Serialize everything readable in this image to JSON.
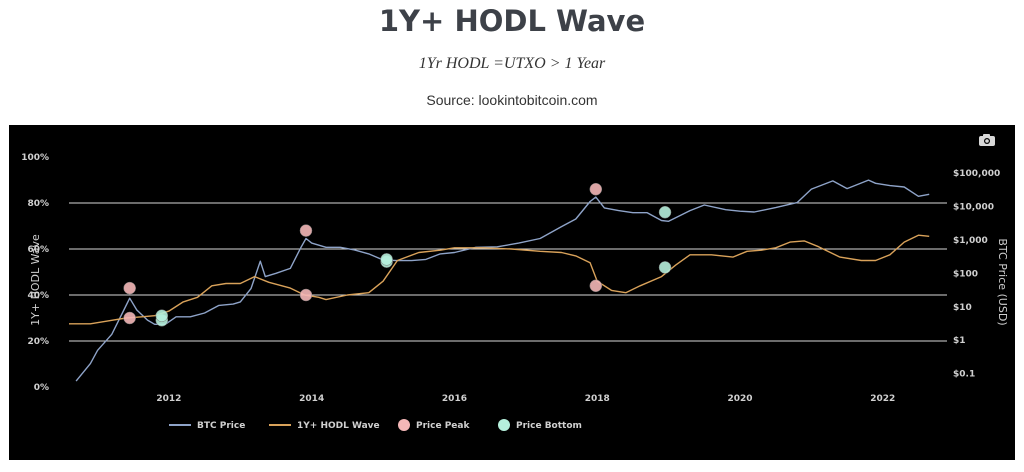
{
  "header": {
    "title": "1Y+ HODL Wave",
    "subtitle": "1Yr HODL =UTXO > 1 Year",
    "source": "Source: lookintobitcoin.com"
  },
  "chart_data": {
    "type": "line",
    "title": "1Y+ HODL Wave",
    "x_range": [
      2010.6,
      2022.9
    ],
    "x_ticks": [
      2012,
      2014,
      2016,
      2018,
      2020,
      2022
    ],
    "y_left": {
      "label": "1Y+ HODL Wave",
      "range": [
        0,
        100
      ],
      "ticks": [
        0,
        20,
        40,
        60,
        80,
        100
      ],
      "tick_labels": [
        "0%",
        "20%",
        "40%",
        "60%",
        "80%",
        "100%"
      ]
    },
    "y_right": {
      "label": "BTC Price (USD)",
      "scale": "log",
      "range": [
        0.04,
        300000
      ],
      "ticks": [
        0.1,
        1,
        10,
        100,
        1000,
        10000,
        100000
      ],
      "tick_labels": [
        "$0.1",
        "$1",
        "$10",
        "$100",
        "$1,000",
        "$10,000",
        "$100,000"
      ]
    },
    "grid": true,
    "legend_position": "bottom",
    "legend": [
      "BTC Price",
      "1Y+ HODL Wave",
      "Price Peak",
      "Price Bottom"
    ],
    "series": [
      {
        "name": "BTC Price",
        "axis": "right",
        "color": "#8ea3c8",
        "x": [
          2010.7,
          2010.9,
          2011.0,
          2011.2,
          2011.45,
          2011.55,
          2011.7,
          2011.8,
          2011.95,
          2012.1,
          2012.3,
          2012.5,
          2012.7,
          2012.9,
          2013.0,
          2013.15,
          2013.28,
          2013.35,
          2013.5,
          2013.7,
          2013.85,
          2013.92,
          2014.0,
          2014.2,
          2014.4,
          2014.6,
          2014.8,
          2015.0,
          2015.2,
          2015.4,
          2015.6,
          2015.8,
          2016.0,
          2016.3,
          2016.6,
          2016.9,
          2017.2,
          2017.5,
          2017.7,
          2017.9,
          2017.98,
          2018.1,
          2018.3,
          2018.5,
          2018.7,
          2018.9,
          2019.0,
          2019.3,
          2019.5,
          2019.8,
          2020.0,
          2020.2,
          2020.5,
          2020.8,
          2021.0,
          2021.3,
          2021.5,
          2021.8,
          2021.9,
          2022.1,
          2022.3,
          2022.5,
          2022.65
        ],
        "y": [
          0.06,
          0.2,
          0.5,
          1.5,
          18,
          8,
          4,
          3,
          3,
          5,
          5,
          6.5,
          11,
          12,
          14,
          35,
          230,
          80,
          100,
          140,
          600,
          1100,
          800,
          600,
          600,
          500,
          380,
          250,
          240,
          240,
          260,
          380,
          420,
          600,
          620,
          800,
          1100,
          2500,
          4200,
          14000,
          19000,
          9000,
          7500,
          6500,
          6500,
          3800,
          3600,
          7500,
          11000,
          8000,
          7200,
          6800,
          9200,
          13000,
          33000,
          58000,
          34000,
          61000,
          49000,
          42000,
          38000,
          20000,
          23000
        ]
      },
      {
        "name": "1Y+ HODL Wave",
        "axis": "left",
        "color": "#d9a25a",
        "x": [
          2010.6,
          2010.9,
          2011.2,
          2011.4,
          2011.6,
          2011.8,
          2012.0,
          2012.2,
          2012.4,
          2012.6,
          2012.8,
          2013.0,
          2013.2,
          2013.4,
          2013.7,
          2013.9,
          2014.1,
          2014.2,
          2014.5,
          2014.8,
          2015.0,
          2015.2,
          2015.5,
          2015.8,
          2016.0,
          2016.4,
          2016.8,
          2017.2,
          2017.5,
          2017.7,
          2017.9,
          2018.0,
          2018.2,
          2018.4,
          2018.6,
          2018.9,
          2019.1,
          2019.3,
          2019.6,
          2019.9,
          2020.1,
          2020.3,
          2020.5,
          2020.7,
          2020.9,
          2021.1,
          2021.4,
          2021.7,
          2021.9,
          2022.1,
          2022.3,
          2022.5,
          2022.65
        ],
        "y": [
          27.5,
          27.5,
          29,
          30,
          30.5,
          31,
          33,
          37,
          39,
          44,
          45,
          45,
          48,
          45.5,
          43,
          40,
          39,
          38,
          40,
          41,
          46,
          55,
          58.5,
          59.5,
          60.5,
          60.5,
          60,
          59,
          58.5,
          57,
          54,
          46,
          42,
          41,
          44,
          48,
          53,
          57.5,
          57.5,
          56.5,
          59,
          59.5,
          60.5,
          63,
          63.5,
          61,
          56.5,
          55,
          55,
          57.5,
          63,
          66,
          65.5
        ]
      }
    ],
    "price_peaks": [
      {
        "x": 2011.45,
        "y": 43
      },
      {
        "x": 2013.92,
        "y": 68
      },
      {
        "x": 2017.98,
        "y": 86
      }
    ],
    "peak_wave_points": [
      {
        "x": 2011.45,
        "y": 30
      },
      {
        "x": 2013.92,
        "y": 40
      },
      {
        "x": 2017.98,
        "y": 44
      }
    ],
    "price_bottoms": [
      {
        "x": 2011.9,
        "y": 29
      },
      {
        "x": 2015.05,
        "y": 54.5
      },
      {
        "x": 2018.95,
        "y": 76
      }
    ],
    "bottom_wave_points": [
      {
        "x": 2011.9,
        "y": 31
      },
      {
        "x": 2015.05,
        "y": 55.5
      },
      {
        "x": 2018.95,
        "y": 52
      }
    ]
  },
  "colors": {
    "background": "#000000",
    "grid": "#d8d8d8",
    "tick_text": "#d0d0d0",
    "price_peak": "#f4b7b7",
    "price_bottom": "#b6f0dc"
  },
  "icons": [
    "camera-icon"
  ]
}
